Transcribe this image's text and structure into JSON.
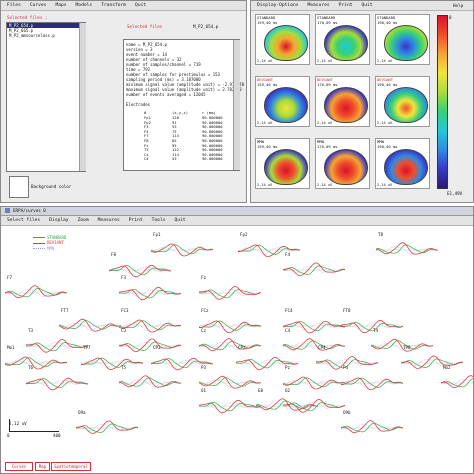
{
  "top_left_window": {
    "menu": [
      "Files",
      "Curves",
      "Maps",
      "Models",
      "Transform",
      "Quit"
    ],
    "files_label": "Selected files :",
    "files": [
      "M_P2_654.p",
      "M_P2_665.p",
      "M_P2_mmsourcelass.p"
    ],
    "selected_title": "Selected files",
    "selected_name": "M_P2_654.p",
    "info_lines": [
      "name = M_P2_654.p",
      "version = 3",
      "event number = 14",
      "number of channels = 32",
      "number of samples/channel = 719",
      "time = 792",
      "number of samples for prestimulus = 153",
      "sampling period (ms) = 3.187000",
      "minimum signal value (amplitude unit) = -2.979578",
      "maximum signal value (amplitude unit) = 2.782910",
      "number of events averaged = 12045",
      "",
      "Electrodes"
    ],
    "elec_headers": [
      "#",
      "(x,y,z)",
      "r (mm)"
    ],
    "electrodes": [
      [
        "Fp1",
        "128",
        "90.000000"
      ],
      [
        "Fp2",
        "91",
        "90.000000"
      ],
      [
        "F3",
        "53",
        "90.000000"
      ],
      [
        "F4",
        "75",
        "90.000000"
      ],
      [
        "F7",
        "113",
        "90.000000"
      ],
      [
        "F8",
        "85",
        "90.000000"
      ],
      [
        "Fz",
        "95",
        "90.000000"
      ],
      [
        "T3",
        "122",
        "90.000000"
      ],
      [
        "Cz",
        "114",
        "90.000000"
      ],
      [
        "C4",
        "53",
        "90.000000"
      ]
    ],
    "bg_button": "Background color"
  },
  "top_right_window": {
    "menu": [
      "Display-Options",
      "Measures",
      "Print",
      "Quit"
    ],
    "help": "Help",
    "cells": [
      {
        "cond": "STANDARD",
        "time": "159,40 ms",
        "foot": "2,14 uV"
      },
      {
        "cond": "STANDARD",
        "time": "170,09 ms",
        "foot": "2,14 uV"
      },
      {
        "cond": "STANDARD",
        "time": "190,40 ms",
        "foot": "2,14 uV"
      },
      {
        "cond": "DEVIANT",
        "time": "159,40 ms",
        "foot": "2,14 uV"
      },
      {
        "cond": "DEVIANT",
        "time": "170,09 ms",
        "foot": "2,14 uV"
      },
      {
        "cond": "DEVIANT",
        "time": "190,40 ms",
        "foot": "2,14 uV"
      },
      {
        "cond": "MMN",
        "time": "159,40 ms",
        "foot": "2,14 uV"
      },
      {
        "cond": "MMN",
        "time": "170,09 ms",
        "foot": "2,14 uV"
      },
      {
        "cond": "MMN",
        "time": "190,40 ms",
        "foot": "2,14 uV"
      }
    ],
    "colorbar_top": "0",
    "colorbar_bottom": "E1,49V",
    "colorbar_colors": [
      "#2a1b6e",
      "#3a36c8",
      "#2f8be0",
      "#25c9d8",
      "#35d07a",
      "#a9dc38",
      "#f2e53a",
      "#f5a531",
      "#ef4f2c",
      "#d8142c"
    ]
  },
  "bottom_window": {
    "title": "ERPA/curves 0",
    "menu": [
      "Select files",
      "Display",
      "Zoom",
      "Measures",
      "Print",
      "Tools",
      "Quit"
    ],
    "legend": [
      {
        "name": "STANDARD",
        "color": "#2fa84a"
      },
      {
        "name": "DEVIANT",
        "color": "#e33b3b"
      },
      {
        "name": "MMN",
        "color": "#9aa0d8"
      }
    ],
    "electrodes": [
      "Fp1",
      "Fp2",
      "F8",
      "F3",
      "Fz",
      "F4",
      "F7",
      "T8",
      "FT7",
      "FC3",
      "FCz",
      "FC4",
      "FT8",
      "T3",
      "C3",
      "Cz",
      "C4",
      "T4",
      "Mo1",
      "TP7",
      "CP3",
      "CPz",
      "CP4",
      "TP8",
      "Mo2",
      "T5",
      "P3",
      "Pz",
      "P4",
      "T6",
      "O1",
      "O2",
      "O9a",
      "O9b",
      "E8"
    ],
    "scale_label": "2,12 uV",
    "axis_start": "0",
    "axis_end": "400",
    "tabs": [
      "Curves",
      "Map",
      "Spatiotemporal"
    ]
  }
}
